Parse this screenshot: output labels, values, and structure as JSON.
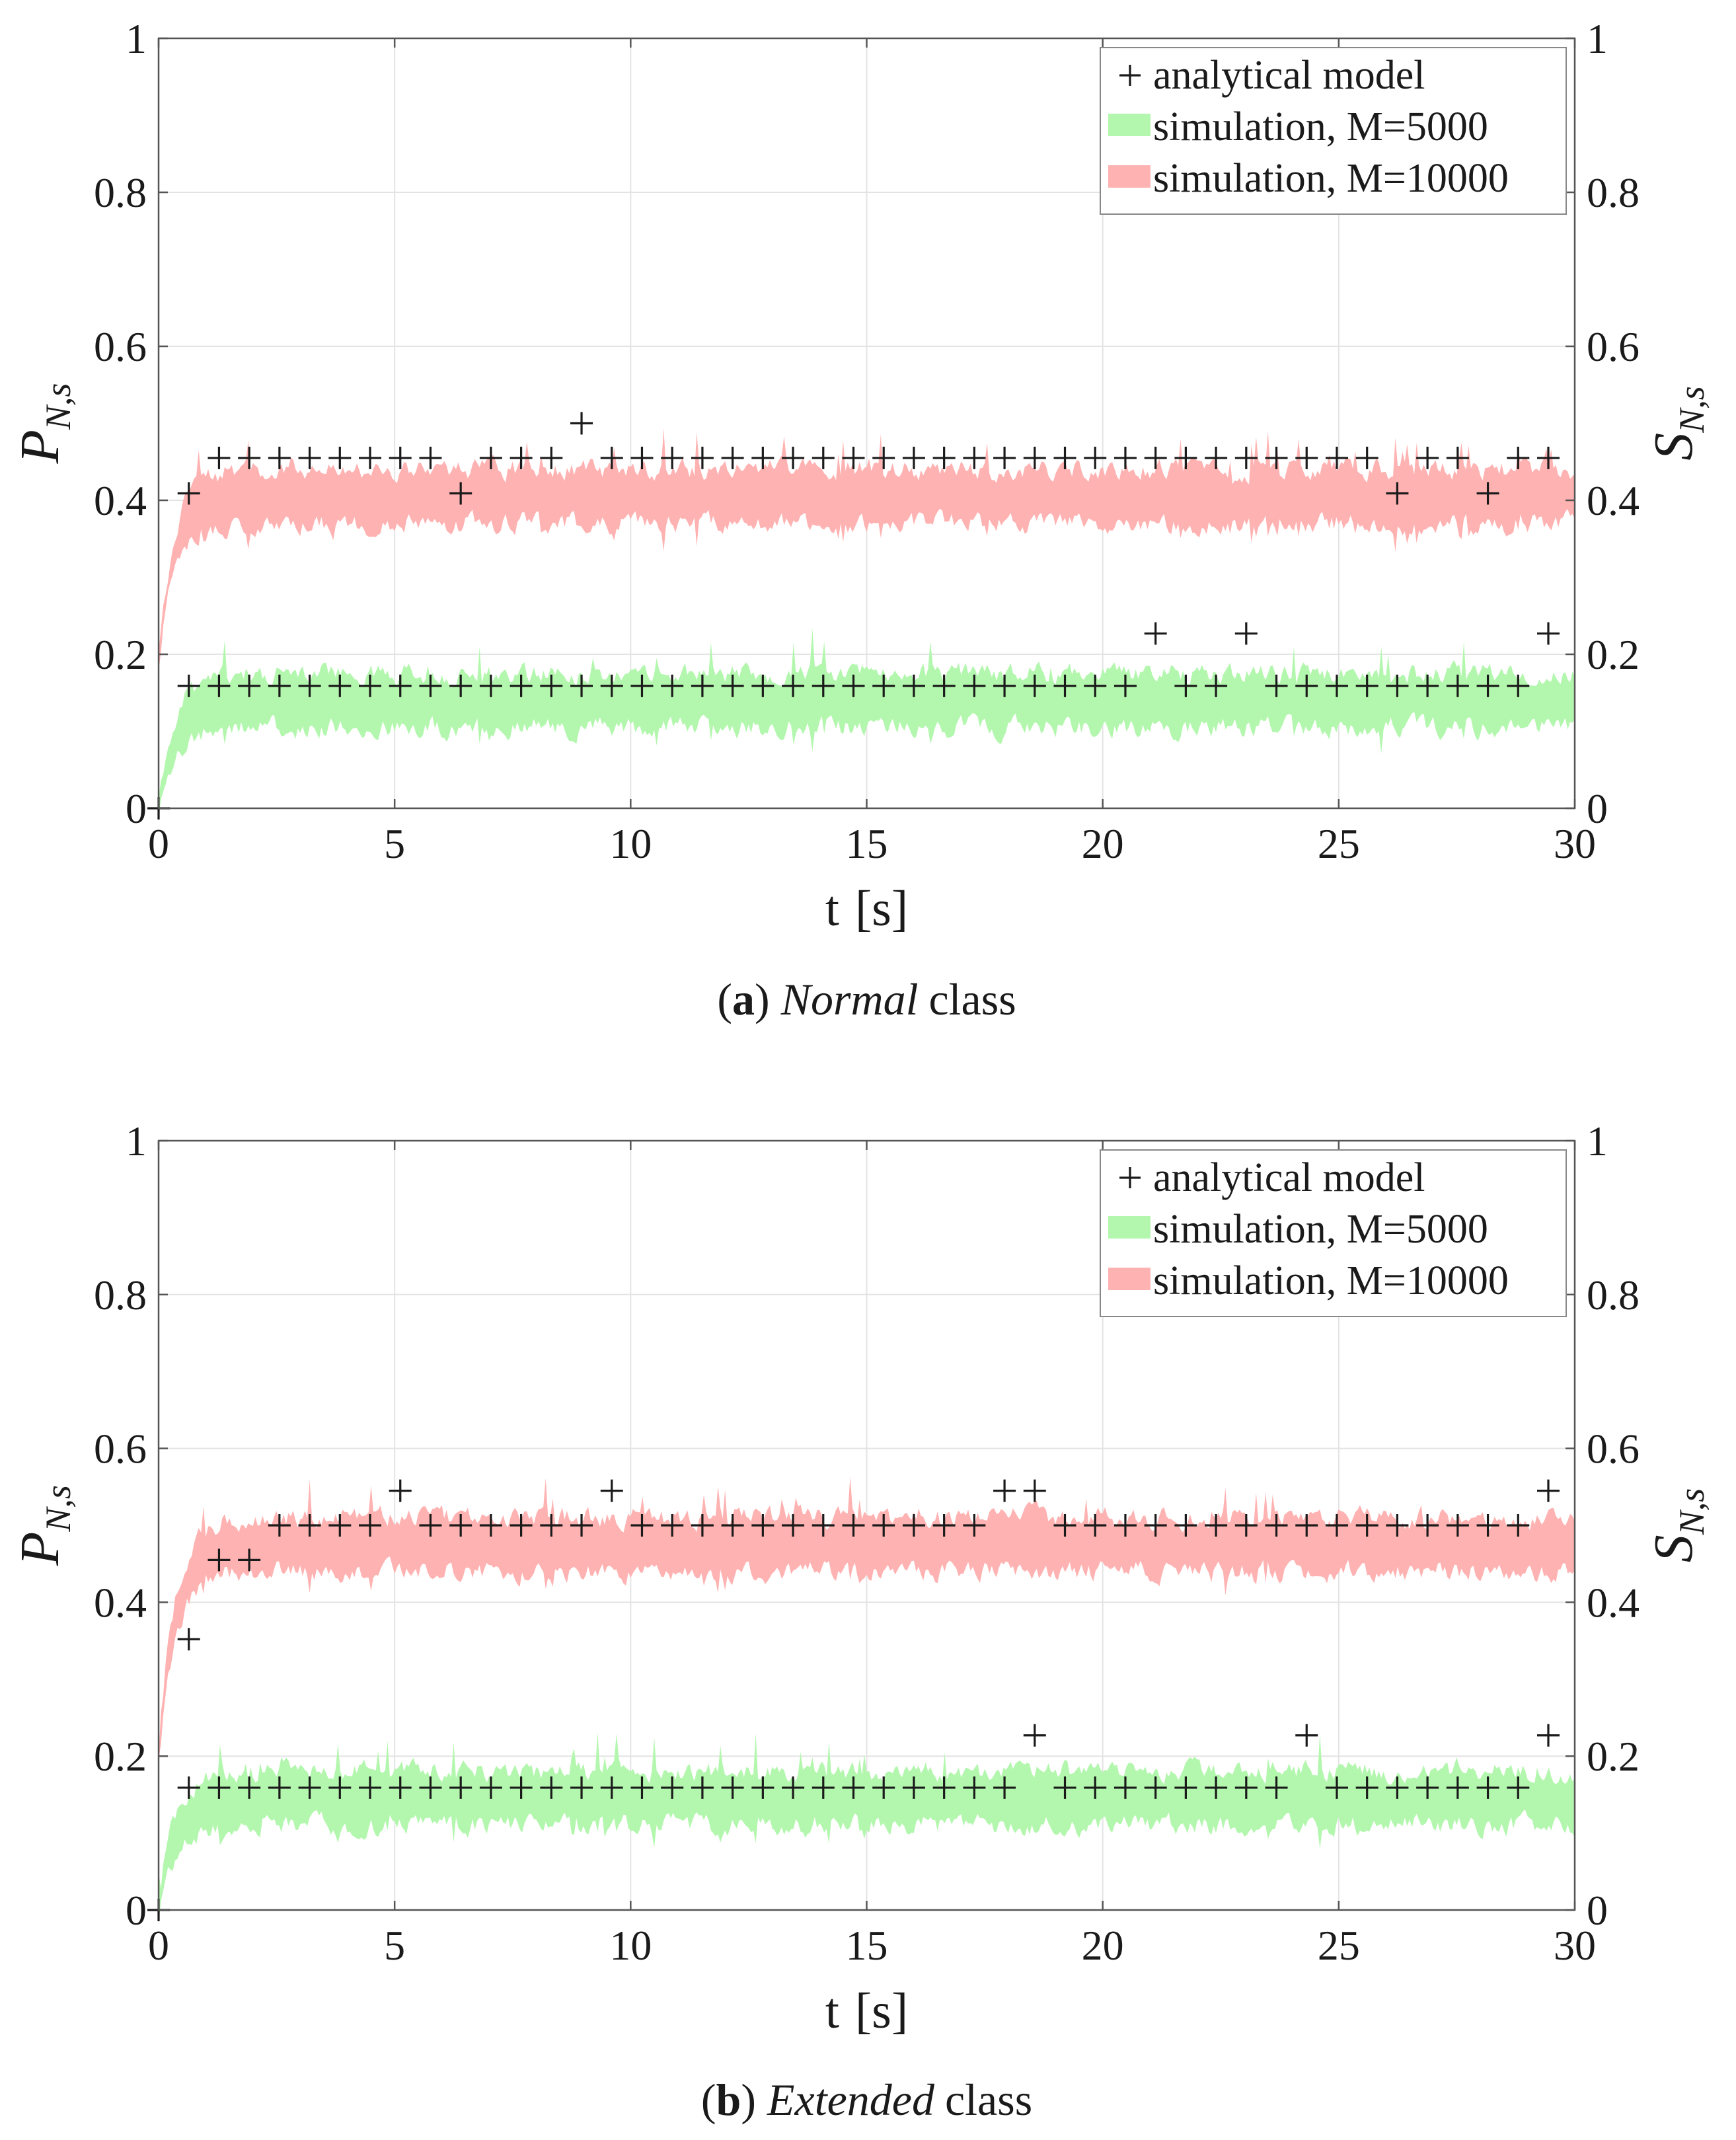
{
  "chart_data": [
    {
      "type": "area",
      "id": "panel-a",
      "xlabel_var": "t",
      "xlabel_unit": "[s]",
      "ylabel_left": "P",
      "ylabel_left_sub": "N,s",
      "ylabel_right": "S",
      "ylabel_right_sub": "N,s",
      "xlim": [
        0,
        30
      ],
      "ylim": [
        0,
        1
      ],
      "x_ticks": [
        "0",
        "5",
        "10",
        "15",
        "20",
        "25",
        "30"
      ],
      "y_ticks_left": [
        "0",
        "0.2",
        "0.4",
        "0.6",
        "0.8",
        "1"
      ],
      "y_ticks_right": [
        "1",
        "0.8",
        "0.6",
        "0.4",
        "0.2",
        "0"
      ],
      "grid": true,
      "legend_position": "top-right",
      "legend": {
        "analytical": "analytical model",
        "sim5000": "simulation, M=5000",
        "sim10000": "simulation, M=10000"
      },
      "caption_label": "a",
      "caption_italic": "Normal",
      "caption_rest": "class",
      "band_5000": {
        "center": 0.14,
        "halfwidth": 0.035,
        "start": 0.0,
        "seed": 11
      },
      "band_10000": {
        "center": 0.405,
        "halfwidth": 0.035,
        "start": 0.2,
        "seed": 23
      },
      "analytical_5000": {
        "times": [
          0,
          0.64,
          1.28,
          1.92,
          2.56,
          3.2,
          3.84,
          4.48,
          5.12,
          5.76,
          6.4,
          7.04,
          7.68,
          8.32,
          8.96,
          9.6,
          10.24,
          10.88,
          11.52,
          12.16,
          12.8,
          13.44,
          14.08,
          14.72,
          15.36,
          16.0,
          16.64,
          17.28,
          17.92,
          18.56,
          19.2,
          19.84,
          20.48,
          21.12,
          21.76,
          22.4,
          23.04,
          23.68,
          24.32,
          24.96,
          25.6,
          26.24,
          26.88,
          27.52,
          28.16,
          28.8,
          29.44
        ],
        "values": [
          0,
          0.159,
          0.159,
          0.159,
          0.159,
          0.159,
          0.159,
          0.159,
          0.159,
          0.159,
          0.159,
          0.159,
          0.159,
          0.159,
          0.159,
          0.159,
          0.159,
          0.159,
          0.159,
          0.159,
          0.159,
          0.159,
          0.159,
          0.159,
          0.159,
          0.159,
          0.159,
          0.159,
          0.159,
          0.159,
          0.159,
          0.159,
          0.159,
          0.227,
          0.159,
          0.159,
          0.227,
          0.159,
          0.159,
          0.159,
          0.159,
          0.159,
          0.159,
          0.159,
          0.159,
          0.159,
          0.227
        ]
      },
      "analytical_10000": {
        "times": [
          0.64,
          1.28,
          1.92,
          2.56,
          3.2,
          3.84,
          4.48,
          5.12,
          5.76,
          6.4,
          7.04,
          7.68,
          8.32,
          8.96,
          9.6,
          10.24,
          10.88,
          11.52,
          12.16,
          12.8,
          13.44,
          14.08,
          14.72,
          15.36,
          16.0,
          16.64,
          17.28,
          17.92,
          18.56,
          19.2,
          19.84,
          20.48,
          21.12,
          21.76,
          22.4,
          23.04,
          23.68,
          24.32,
          24.96,
          25.6,
          26.24,
          26.88,
          27.52,
          28.16,
          28.8,
          29.44
        ],
        "values": [
          0.409,
          0.455,
          0.455,
          0.455,
          0.455,
          0.455,
          0.455,
          0.455,
          0.455,
          0.409,
          0.455,
          0.455,
          0.455,
          0.5,
          0.455,
          0.455,
          0.455,
          0.455,
          0.455,
          0.455,
          0.455,
          0.455,
          0.455,
          0.455,
          0.455,
          0.455,
          0.455,
          0.455,
          0.455,
          0.455,
          0.455,
          0.455,
          0.455,
          0.455,
          0.455,
          0.455,
          0.455,
          0.455,
          0.455,
          0.455,
          0.409,
          0.455,
          0.455,
          0.409,
          0.455,
          0.455
        ]
      }
    },
    {
      "type": "area",
      "id": "panel-b",
      "xlabel_var": "t",
      "xlabel_unit": "[s]",
      "ylabel_left": "P",
      "ylabel_left_sub": "N,s",
      "ylabel_right": "S",
      "ylabel_right_sub": "N,s",
      "xlim": [
        0,
        30
      ],
      "ylim": [
        0,
        1
      ],
      "x_ticks": [
        "0",
        "5",
        "10",
        "15",
        "20",
        "25",
        "30"
      ],
      "y_ticks_left": [
        "0",
        "0.2",
        "0.4",
        "0.6",
        "0.8",
        "1"
      ],
      "y_ticks_right": [
        "1",
        "0.8",
        "0.6",
        "0.4",
        "0.2",
        "0"
      ],
      "grid": true,
      "legend_position": "top-right",
      "legend": {
        "analytical": "analytical model",
        "sim5000": "simulation, M=5000",
        "sim10000": "simulation, M=10000"
      },
      "caption_label": "b",
      "caption_italic": "Extended",
      "caption_rest": "class",
      "band_5000": {
        "center": 0.145,
        "halfwidth": 0.035,
        "start": 0.0,
        "seed": 37
      },
      "band_10000": {
        "center": 0.475,
        "halfwidth": 0.035,
        "start": 0.2,
        "seed": 53
      },
      "analytical_5000": {
        "times": [
          0,
          0.64,
          1.28,
          1.92,
          2.56,
          3.2,
          3.84,
          4.48,
          5.12,
          5.76,
          6.4,
          7.04,
          7.68,
          8.32,
          8.96,
          9.6,
          10.24,
          10.88,
          11.52,
          12.16,
          12.8,
          13.44,
          14.08,
          14.72,
          15.36,
          16.0,
          16.64,
          17.28,
          17.92,
          18.56,
          19.2,
          19.84,
          20.48,
          21.12,
          21.76,
          22.4,
          23.04,
          23.68,
          24.32,
          24.96,
          25.6,
          26.24,
          26.88,
          27.52,
          28.16,
          28.8,
          29.44
        ],
        "values": [
          0,
          0.159,
          0.159,
          0.159,
          0.159,
          0.159,
          0.159,
          0.159,
          0.159,
          0.159,
          0.159,
          0.159,
          0.159,
          0.159,
          0.159,
          0.159,
          0.159,
          0.159,
          0.159,
          0.159,
          0.159,
          0.159,
          0.159,
          0.159,
          0.159,
          0.159,
          0.159,
          0.159,
          0.159,
          0.227,
          0.159,
          0.159,
          0.159,
          0.159,
          0.159,
          0.159,
          0.159,
          0.159,
          0.227,
          0.159,
          0.159,
          0.159,
          0.159,
          0.159,
          0.159,
          0.159,
          0.227
        ]
      },
      "analytical_10000": {
        "times": [
          0.64,
          1.28,
          1.92,
          2.56,
          3.2,
          3.84,
          4.48,
          5.12,
          5.76,
          6.4,
          7.04,
          7.68,
          8.32,
          8.96,
          9.6,
          10.24,
          10.88,
          11.52,
          12.16,
          12.8,
          13.44,
          14.08,
          14.72,
          15.36,
          16.0,
          16.64,
          17.28,
          17.92,
          18.56,
          19.2,
          19.84,
          20.48,
          21.12,
          21.76,
          22.4,
          23.04,
          23.68,
          24.32,
          24.96,
          25.6,
          26.24,
          26.88,
          27.52,
          28.16,
          28.8,
          29.44
        ],
        "values": [
          0.352,
          0.455,
          0.455,
          0.5,
          0.5,
          0.5,
          0.5,
          0.545,
          0.5,
          0.5,
          0.5,
          0.5,
          0.5,
          0.5,
          0.545,
          0.5,
          0.5,
          0.5,
          0.5,
          0.5,
          0.5,
          0.5,
          0.5,
          0.5,
          0.5,
          0.5,
          0.5,
          0.545,
          0.545,
          0.5,
          0.5,
          0.5,
          0.5,
          0.5,
          0.5,
          0.5,
          0.5,
          0.5,
          0.5,
          0.5,
          0.5,
          0.5,
          0.5,
          0.5,
          0.5,
          0.545
        ]
      }
    }
  ],
  "colors": {
    "sim5000": "#b3f7ae",
    "sim10000": "#ffb2b2",
    "marker": "#1a1a1a",
    "grid": "#e3e3e3",
    "axis": "#555555"
  }
}
